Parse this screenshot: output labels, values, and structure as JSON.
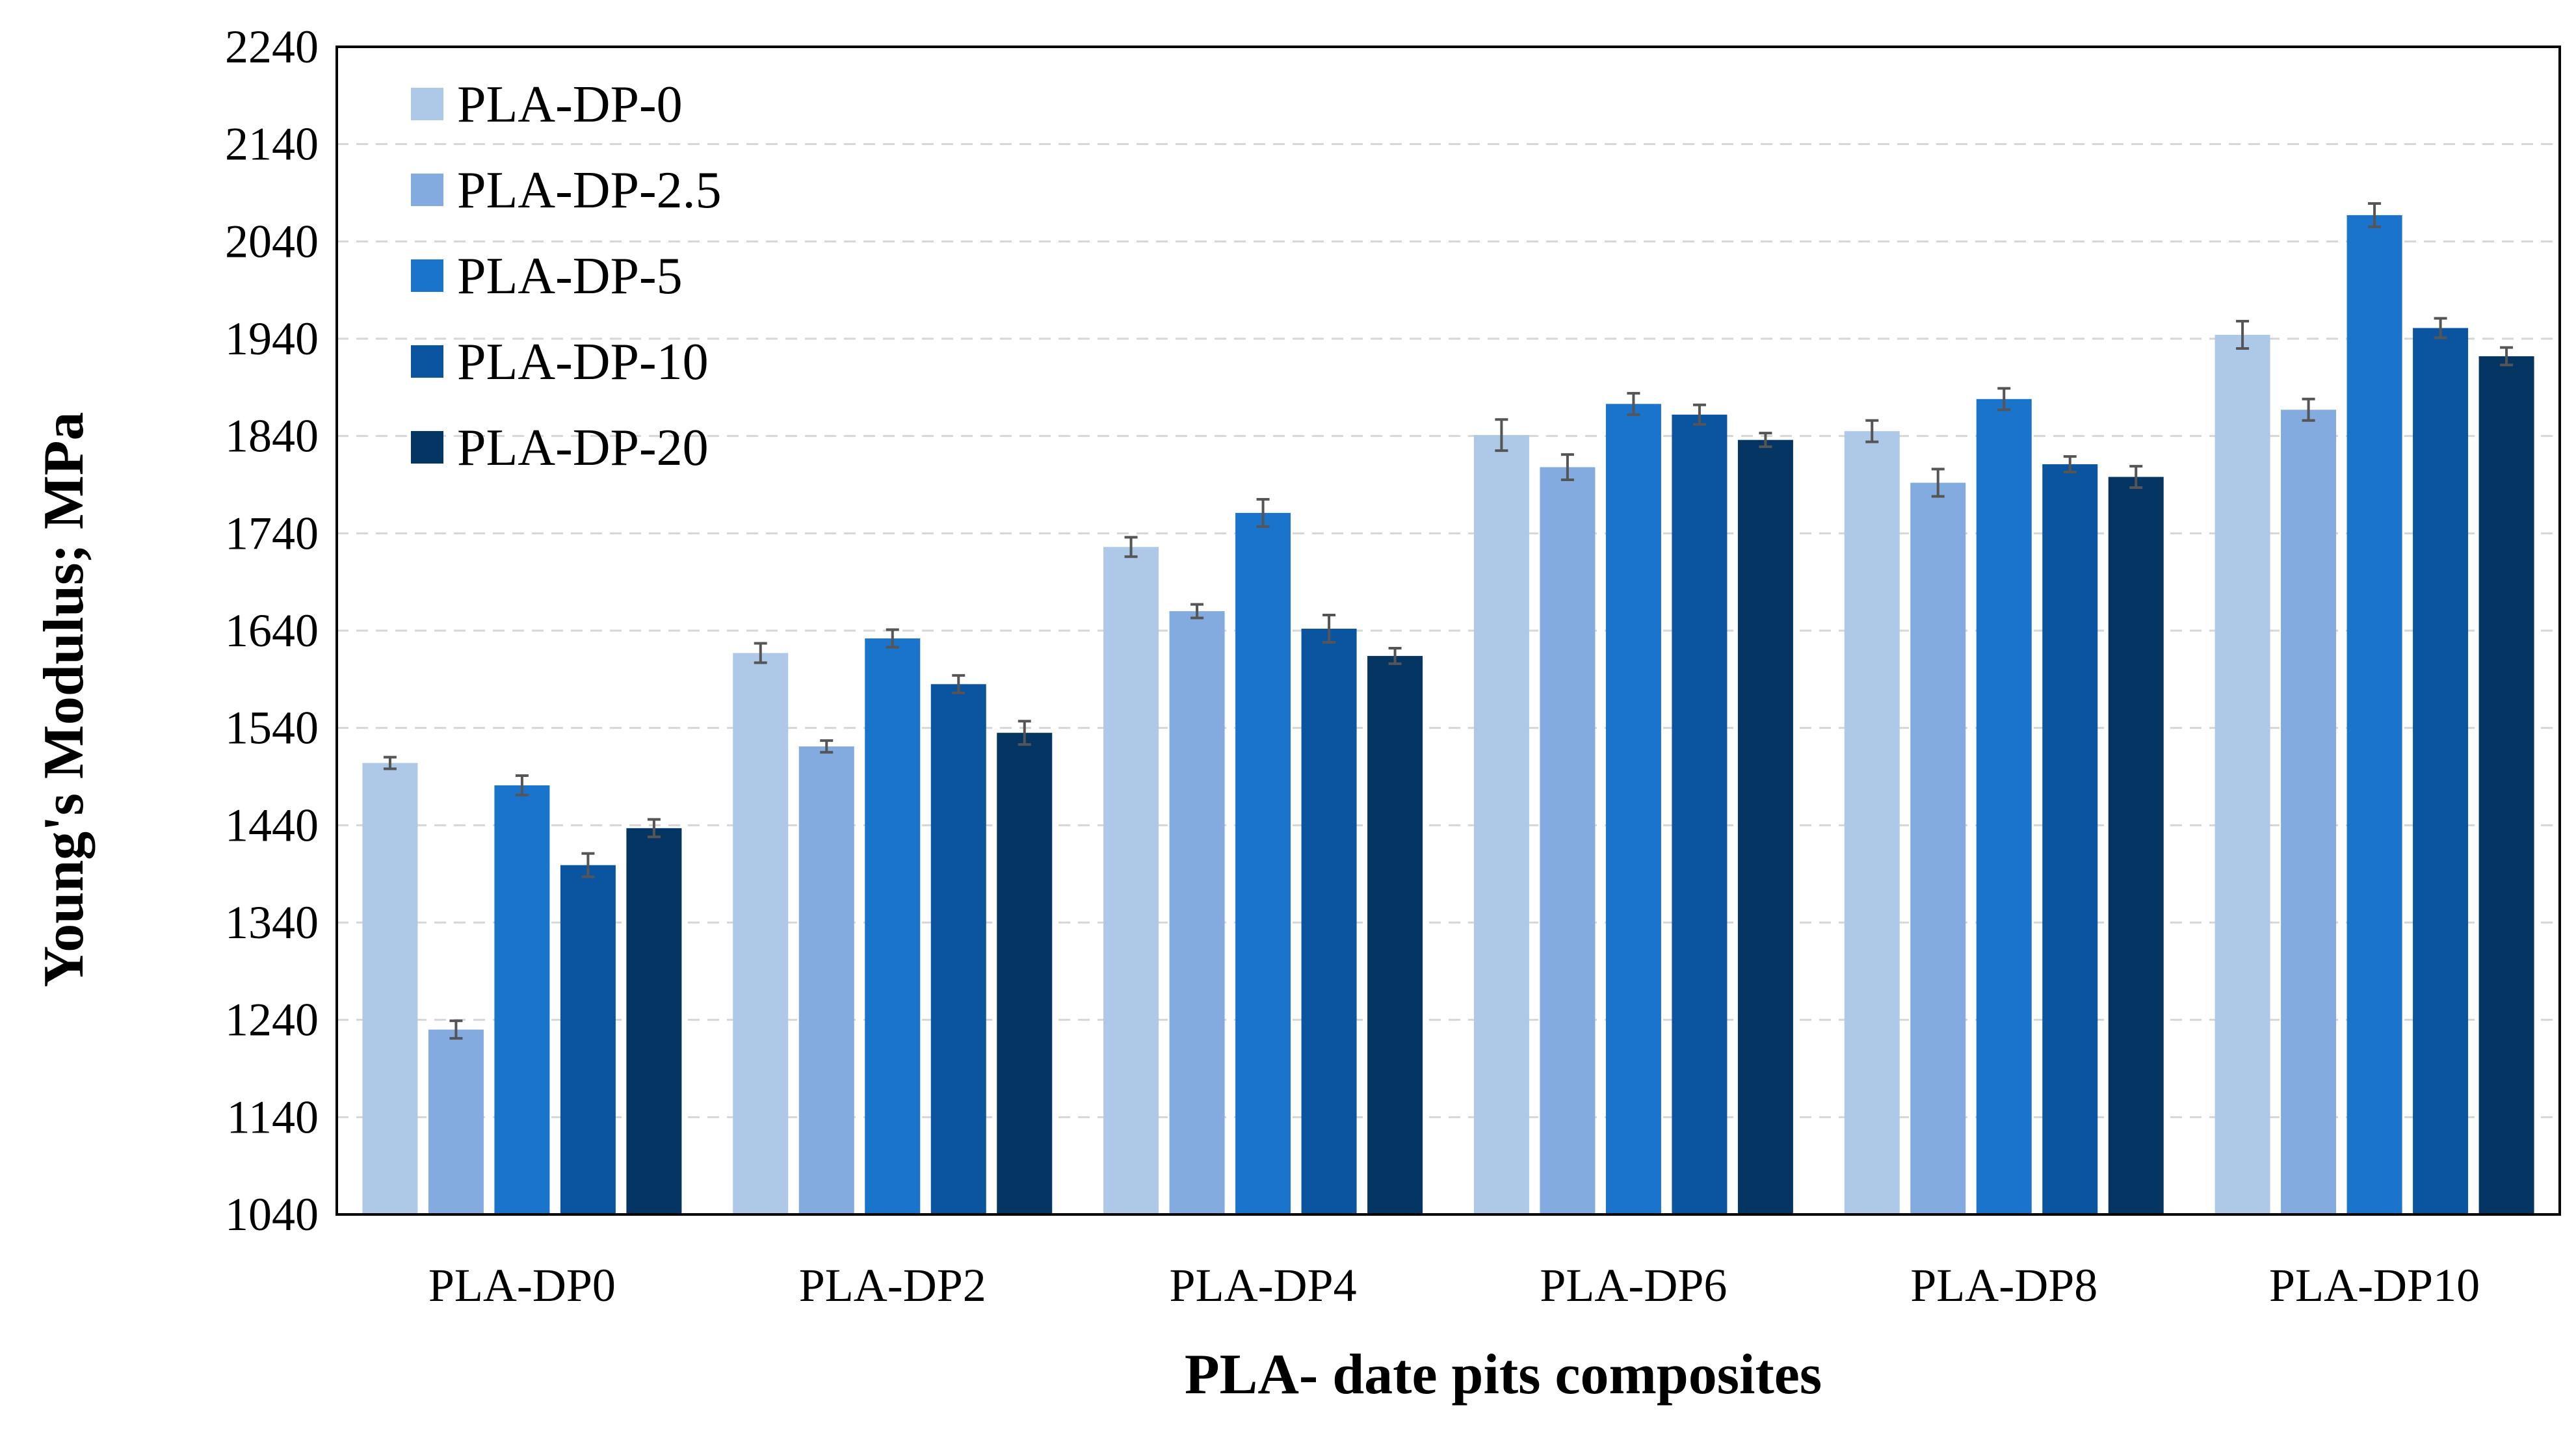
{
  "chart_data": {
    "type": "bar",
    "title": "",
    "xlabel": "PLA- date pits composites",
    "ylabel": "Young's Modulus; MPa",
    "ylim": [
      1040,
      2240
    ],
    "yticks": [
      "1040",
      "1140",
      "1240",
      "1340",
      "1440",
      "1540",
      "1640",
      "1740",
      "1840",
      "1940",
      "2040",
      "2140",
      "2240"
    ],
    "grid": "horizontal dashed",
    "legend_position": "top-left",
    "categories": [
      "PLA-DP0",
      "PLA-DP2",
      "PLA-DP4",
      "PLA-DP6",
      "PLA-DP8",
      "PLA-DP10"
    ],
    "series": [
      {
        "name": "PLA-DP-0",
        "color": "#aec8e8",
        "values": [
          1504,
          1617,
          1726,
          1841,
          1845,
          1944
        ],
        "errors": [
          6,
          10,
          10,
          16,
          11,
          14
        ]
      },
      {
        "name": "PLA-DP-2.5",
        "color": "#83abe0",
        "values": [
          1230,
          1521,
          1660,
          1808,
          1792,
          1867
        ],
        "errors": [
          9,
          6,
          7,
          13,
          14,
          11
        ]
      },
      {
        "name": "PLA-DP-5",
        "color": "#1a74cc",
        "values": [
          1481,
          1632,
          1761,
          1873,
          1878,
          2067
        ],
        "errors": [
          10,
          9,
          14,
          11,
          11,
          12
        ]
      },
      {
        "name": "PLA-DP-10",
        "color": "#0b55a0",
        "values": [
          1399,
          1585,
          1642,
          1862,
          1811,
          1951
        ],
        "errors": [
          12,
          9,
          14,
          10,
          8,
          10
        ]
      },
      {
        "name": "PLA-DP-20",
        "color": "#053663",
        "values": [
          1437,
          1535,
          1614,
          1836,
          1798,
          1922
        ],
        "errors": [
          9,
          12,
          8,
          7,
          11,
          9
        ]
      }
    ]
  }
}
